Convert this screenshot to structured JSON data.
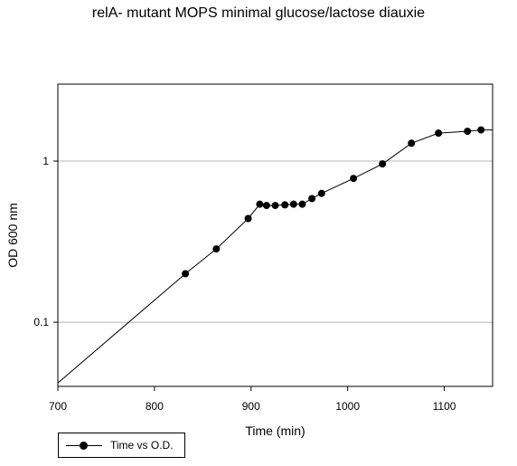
{
  "chart_data": {
    "type": "line",
    "title": "relA- mutant MOPS minimal glucose/lactose diauxie",
    "xlabel": "Time (min)",
    "ylabel": "OD 600 nm",
    "xlim": [
      700,
      1150
    ],
    "ylim": [
      0.04,
      3.0
    ],
    "yscale": "log",
    "grid": "horizontal",
    "legend_position": "bottom-left",
    "x_ticks": [
      700,
      800,
      900,
      1000,
      1100
    ],
    "y_ticks": [
      0.1,
      1
    ],
    "x_tick_labels": [
      "700",
      "800",
      "900",
      "1000",
      "1100"
    ],
    "y_tick_labels": [
      "0.1",
      "1"
    ],
    "series": [
      {
        "name": "Time vs O.D.",
        "marker": "circle",
        "color": "#000000",
        "x": [
          832,
          864,
          897,
          909,
          916,
          925,
          935,
          944,
          953,
          963,
          973,
          1006,
          1036,
          1066,
          1094,
          1124,
          1138
        ],
        "y": [
          0.2,
          0.285,
          0.44,
          0.54,
          0.53,
          0.53,
          0.535,
          0.54,
          0.54,
          0.585,
          0.63,
          0.78,
          0.96,
          1.29,
          1.49,
          1.53,
          1.56
        ]
      }
    ],
    "line_segments": [
      {
        "x": [
          700,
          832
        ],
        "y": [
          0.042,
          0.2
        ]
      },
      {
        "x": [
          1138,
          1150
        ],
        "y": [
          1.56,
          1.56
        ]
      }
    ]
  }
}
